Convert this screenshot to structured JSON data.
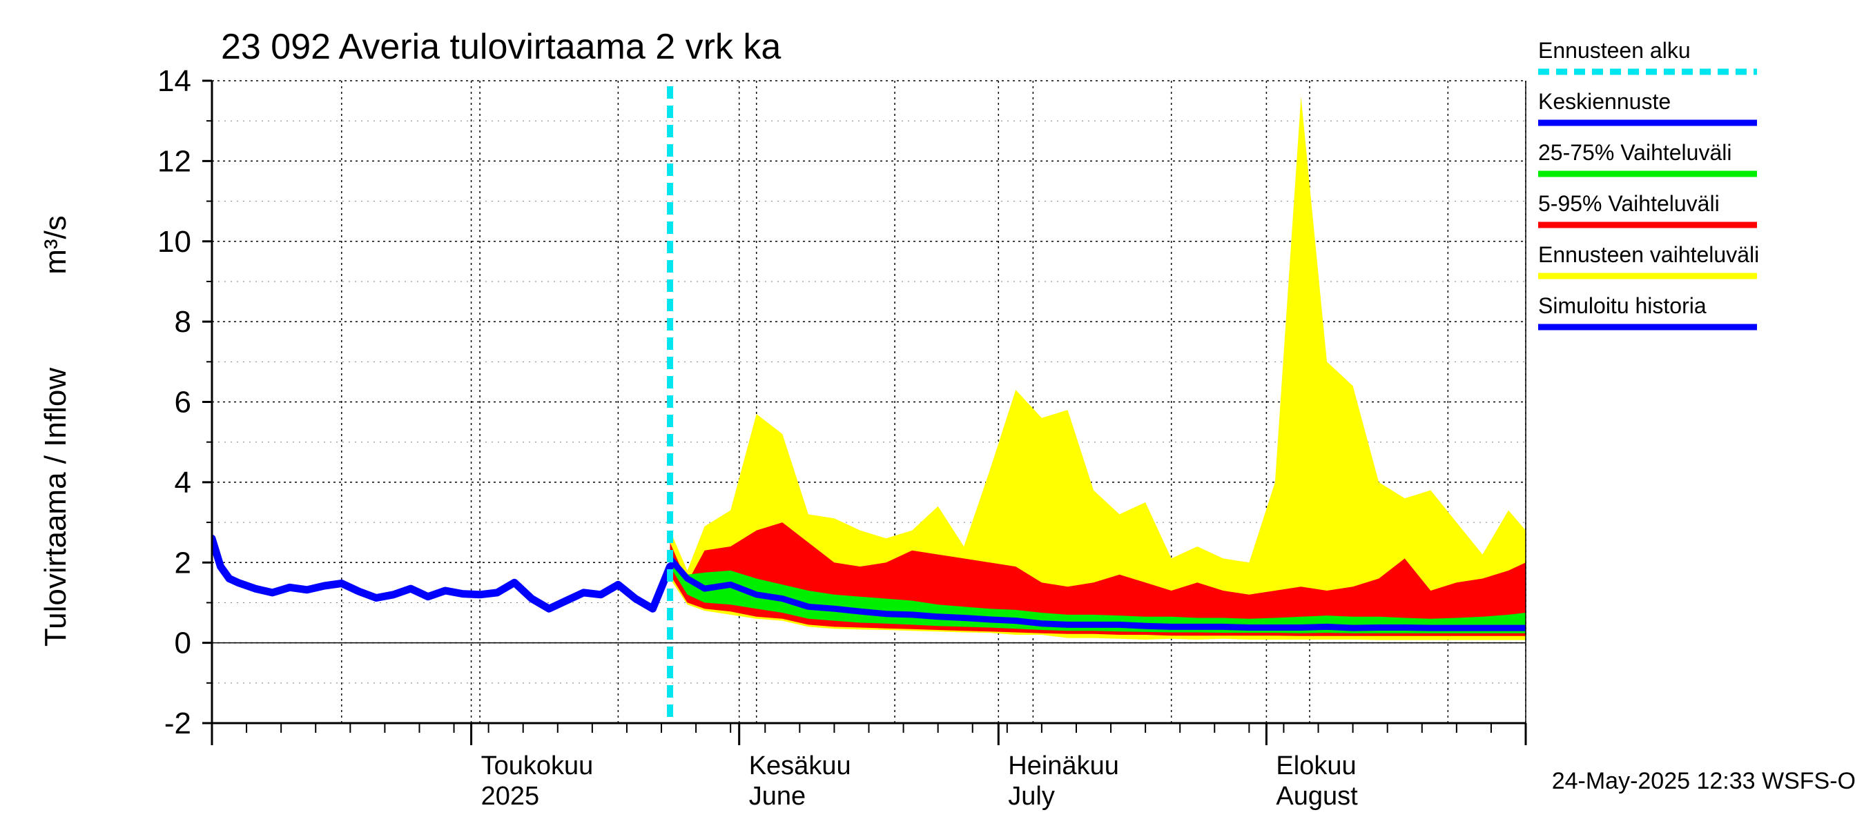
{
  "chart_data": {
    "type": "area",
    "title": "23 092 Averia tulovirtaama 2 vrk ka",
    "ylabel": "Tulovirtaama / Inflow",
    "yunit": "m³/s",
    "ylim": [
      -2,
      14
    ],
    "yticks": [
      "-2",
      "0",
      "2",
      "4",
      "6",
      "8",
      "10",
      "12",
      "14"
    ],
    "xlim": [
      "2025-04-01",
      "2025-08-31"
    ],
    "grid": true,
    "legend_position": "right",
    "month_labels": [
      {
        "date": "2025-05-01",
        "fi": "Toukokuu",
        "en": "2025"
      },
      {
        "date": "2025-06-01",
        "fi": "Kesäkuu",
        "en": "June"
      },
      {
        "date": "2025-07-01",
        "fi": "Heinäkuu",
        "en": "July"
      },
      {
        "date": "2025-08-01",
        "fi": "Elokuu",
        "en": "August"
      }
    ],
    "month_boundaries": [
      "2025-04-01",
      "2025-05-01",
      "2025-06-01",
      "2025-07-01",
      "2025-08-01",
      "2025-08-31"
    ],
    "forecast_start": "2025-05-24",
    "legend": [
      {
        "key": "forecast_start",
        "label": "Ennusteen alku",
        "color": "#00e5ee",
        "style": "dashed"
      },
      {
        "key": "mean",
        "label": "Keskiennuste",
        "color": "#0000ff",
        "style": "solid"
      },
      {
        "key": "p25_75",
        "label": "25-75% Vaihteluväli",
        "color": "#00ee00",
        "style": "solid"
      },
      {
        "key": "p5_95",
        "label": "5-95% Vaihteluväli",
        "color": "#ff0000",
        "style": "solid"
      },
      {
        "key": "range",
        "label": "Ennusteen vaihteluväli",
        "color": "#ffff00",
        "style": "solid"
      },
      {
        "key": "history",
        "label": "Simuloitu historia",
        "color": "#0000ff",
        "style": "solid"
      }
    ],
    "history": {
      "x": [
        "2025-04-01",
        "2025-04-02",
        "2025-04-03",
        "2025-04-04",
        "2025-04-06",
        "2025-04-08",
        "2025-04-10",
        "2025-04-12",
        "2025-04-14",
        "2025-04-16",
        "2025-04-18",
        "2025-04-20",
        "2025-04-22",
        "2025-04-24",
        "2025-04-26",
        "2025-04-28",
        "2025-04-30",
        "2025-05-02",
        "2025-05-04",
        "2025-05-06",
        "2025-05-08",
        "2025-05-10",
        "2025-05-12",
        "2025-05-14",
        "2025-05-16",
        "2025-05-18",
        "2025-05-20",
        "2025-05-22",
        "2025-05-24"
      ],
      "y": [
        2.6,
        1.9,
        1.6,
        1.5,
        1.35,
        1.25,
        1.38,
        1.32,
        1.42,
        1.48,
        1.28,
        1.12,
        1.2,
        1.35,
        1.15,
        1.3,
        1.22,
        1.2,
        1.25,
        1.5,
        1.1,
        0.85,
        1.05,
        1.25,
        1.2,
        1.45,
        1.1,
        0.85,
        1.9
      ]
    },
    "forecast": {
      "x": [
        "2025-05-24",
        "2025-05-26",
        "2025-05-28",
        "2025-05-31",
        "2025-06-03",
        "2025-06-06",
        "2025-06-09",
        "2025-06-12",
        "2025-06-15",
        "2025-06-18",
        "2025-06-21",
        "2025-06-24",
        "2025-06-27",
        "2025-06-30",
        "2025-07-03",
        "2025-07-06",
        "2025-07-09",
        "2025-07-12",
        "2025-07-15",
        "2025-07-18",
        "2025-07-21",
        "2025-07-24",
        "2025-07-27",
        "2025-07-30",
        "2025-08-02",
        "2025-08-05",
        "2025-08-08",
        "2025-08-11",
        "2025-08-14",
        "2025-08-17",
        "2025-08-20",
        "2025-08-23",
        "2025-08-26",
        "2025-08-29",
        "2025-08-31"
      ],
      "mean": [
        2.1,
        1.6,
        1.35,
        1.45,
        1.2,
        1.1,
        0.9,
        0.85,
        0.78,
        0.72,
        0.7,
        0.65,
        0.62,
        0.58,
        0.55,
        0.48,
        0.45,
        0.45,
        0.45,
        0.42,
        0.4,
        0.4,
        0.4,
        0.38,
        0.38,
        0.38,
        0.4,
        0.37,
        0.38,
        0.38,
        0.37,
        0.37,
        0.37,
        0.37,
        0.37
      ],
      "p25": [
        1.9,
        1.2,
        1.0,
        0.95,
        0.85,
        0.75,
        0.6,
        0.55,
        0.5,
        0.48,
        0.45,
        0.42,
        0.4,
        0.38,
        0.35,
        0.32,
        0.3,
        0.3,
        0.28,
        0.27,
        0.26,
        0.26,
        0.25,
        0.25,
        0.25,
        0.24,
        0.25,
        0.24,
        0.24,
        0.24,
        0.24,
        0.24,
        0.24,
        0.24,
        0.24
      ],
      "p75": [
        2.2,
        1.7,
        1.75,
        1.8,
        1.6,
        1.45,
        1.3,
        1.2,
        1.15,
        1.1,
        1.05,
        0.95,
        0.9,
        0.85,
        0.82,
        0.75,
        0.7,
        0.7,
        0.68,
        0.65,
        0.65,
        0.62,
        0.62,
        0.6,
        0.62,
        0.65,
        0.68,
        0.65,
        0.65,
        0.62,
        0.6,
        0.62,
        0.65,
        0.7,
        0.75
      ],
      "p5": [
        1.7,
        1.0,
        0.85,
        0.78,
        0.65,
        0.6,
        0.45,
        0.4,
        0.38,
        0.36,
        0.34,
        0.32,
        0.3,
        0.28,
        0.26,
        0.24,
        0.22,
        0.22,
        0.2,
        0.2,
        0.18,
        0.18,
        0.18,
        0.18,
        0.18,
        0.17,
        0.17,
        0.17,
        0.17,
        0.17,
        0.17,
        0.17,
        0.17,
        0.17,
        0.17
      ],
      "p95": [
        2.5,
        1.5,
        2.3,
        2.4,
        2.8,
        3.0,
        2.5,
        2.0,
        1.9,
        2.0,
        2.3,
        2.2,
        2.1,
        2.0,
        1.9,
        1.5,
        1.4,
        1.5,
        1.7,
        1.5,
        1.3,
        1.5,
        1.3,
        1.2,
        1.3,
        1.4,
        1.3,
        1.4,
        1.6,
        2.1,
        1.3,
        1.5,
        1.6,
        1.8,
        2.0
      ],
      "min": [
        1.6,
        0.95,
        0.8,
        0.7,
        0.6,
        0.55,
        0.4,
        0.35,
        0.33,
        0.32,
        0.3,
        0.28,
        0.26,
        0.25,
        0.2,
        0.2,
        0.12,
        0.12,
        0.1,
        0.08,
        0.1,
        0.08,
        0.1,
        0.08,
        0.08,
        0.08,
        0.08,
        0.08,
        0.07,
        0.07,
        0.07,
        0.07,
        0.07,
        0.07,
        0.07
      ],
      "max": [
        2.8,
        1.8,
        2.9,
        3.3,
        5.7,
        5.2,
        3.2,
        3.1,
        2.8,
        2.6,
        2.8,
        3.4,
        2.4,
        4.3,
        6.3,
        5.6,
        5.8,
        3.8,
        3.2,
        3.5,
        2.1,
        2.4,
        2.1,
        2.0,
        4.0,
        13.6,
        7.0,
        6.4,
        4.0,
        3.6,
        3.8,
        3.0,
        2.2,
        3.3,
        2.8
      ]
    },
    "timestamp": "24-May-2025 12:33 WSFS-O"
  }
}
